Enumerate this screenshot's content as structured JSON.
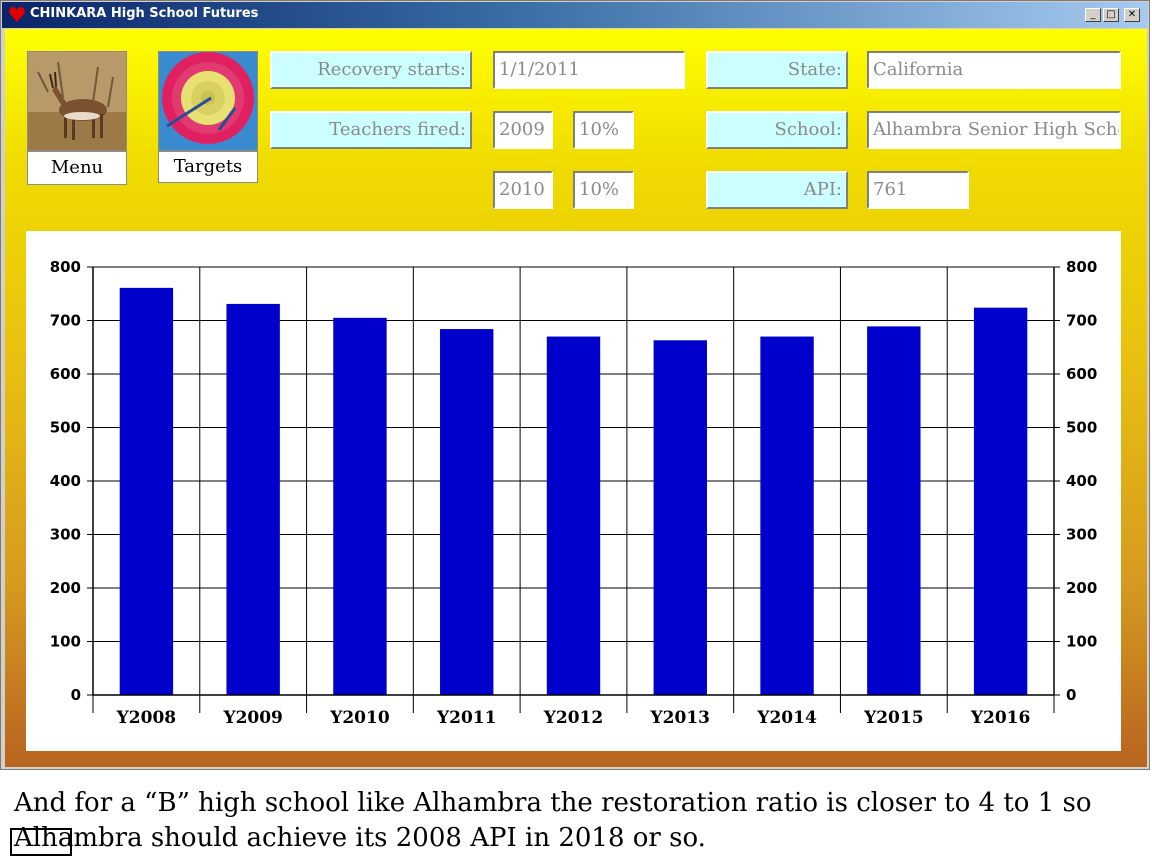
{
  "window": {
    "title": "CHINKARA High School Futures",
    "buttons": {
      "minimize": "_",
      "maximize": "□",
      "close": "✕"
    }
  },
  "toolbar": {
    "menu_label": "Menu",
    "targets_label": "Targets"
  },
  "form": {
    "recovery_label": "Recovery starts:",
    "recovery_value": "1/1/2011",
    "teachers_label": "Teachers fired:",
    "teachers_year1": "2009",
    "teachers_pct1": "10%",
    "teachers_year2": "2010",
    "teachers_pct2": "10%",
    "state_label": "State:",
    "state_value": "California",
    "school_label": "School:",
    "school_value": "Alhambra Senior High School",
    "api_label": "API:",
    "api_value": "761"
  },
  "colors": {
    "bar": "#0000cc",
    "label_bg": "#ccffff"
  },
  "icons": {
    "title": "heart-icon",
    "menu": "gazelle-image",
    "targets": "archery-target-image"
  },
  "chart_data": {
    "type": "bar",
    "categories": [
      "Y2008",
      "Y2009",
      "Y2010",
      "Y2011",
      "Y2012",
      "Y2013",
      "Y2014",
      "Y2015",
      "Y2016"
    ],
    "values": [
      761,
      731,
      705,
      684,
      670,
      663,
      670,
      689,
      724
    ],
    "ylim": [
      0,
      800
    ],
    "yticks": [
      0,
      100,
      200,
      300,
      400,
      500,
      600,
      700,
      800
    ],
    "grid": true,
    "right_axis": true
  },
  "caption": {
    "line1": "And for a “B” high school like Alhambra the restoration ratio is closer to 4 to 1 so",
    "line2": "Alhambra should achieve its 2008 API in 2018 or so."
  }
}
